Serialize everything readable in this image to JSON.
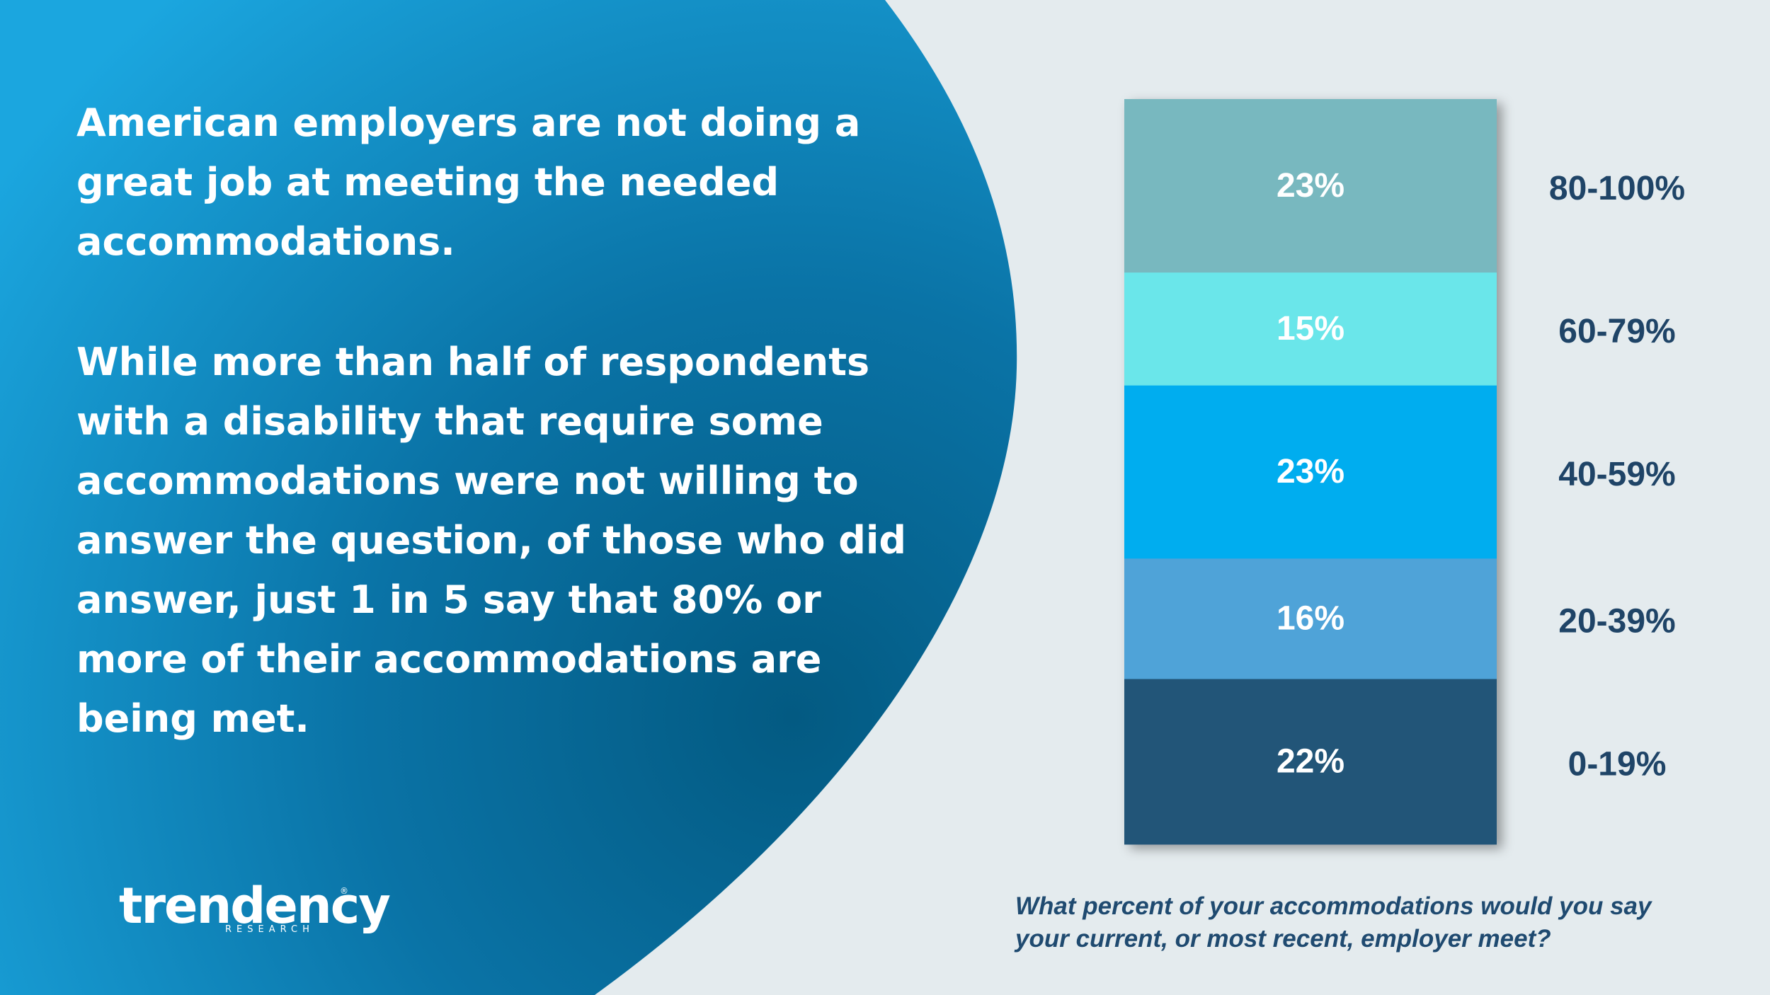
{
  "headline": "American employers are not doing a great job at meeting the needed accommodations.",
  "body": "While more than half of respondents with a disability that require some accommodations were not willing to answer the question, of those who did answer, just 1 in 5 say that 80% or more of their accommodations are being met.",
  "logo": {
    "word": "trendency",
    "sub": "RESEARCH",
    "reg": "®"
  },
  "question": "What percent of your accommodations would you say your current, or most recent, employer meet?",
  "colors": {
    "panel_light": "#1ba6df",
    "panel_dark": "#035a82",
    "page_bg": "#e4ebee",
    "label_color": "#1f4467"
  },
  "chart_data": {
    "type": "bar",
    "stacked": true,
    "orientation": "vertical-stack",
    "segments": [
      {
        "category": "0-19%",
        "value": 22,
        "label": "22%",
        "color": "#245478"
      },
      {
        "category": "20-39%",
        "value": 16,
        "label": "16%",
        "color": "#4fa3d8"
      },
      {
        "category": "40-59%",
        "value": 23,
        "label": "23%",
        "color": "#00adef"
      },
      {
        "category": "60-79%",
        "value": 15,
        "label": "15%",
        "color": "#6ae6ea"
      },
      {
        "category": "80-100%",
        "value": 23,
        "label": "23%",
        "color": "#78b8bf"
      }
    ]
  }
}
